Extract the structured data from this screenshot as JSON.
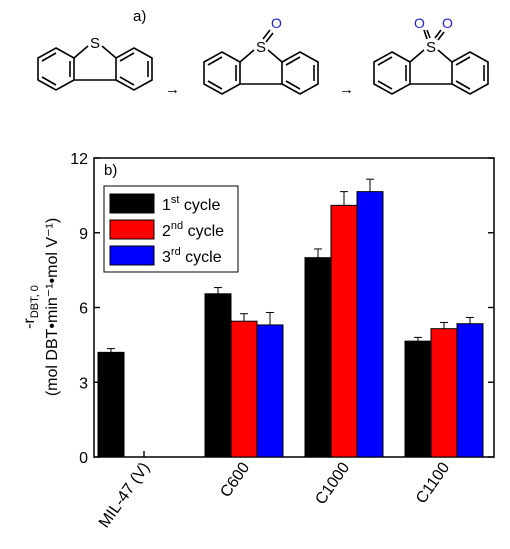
{
  "panel_a": {
    "label": "a)",
    "sulfur_symbol": "S",
    "oxygen_symbol": "O",
    "arrow_symbol": "→",
    "molecules": [
      "DBT",
      "DBT sulfoxide",
      "DBT sulfone"
    ]
  },
  "chart_data": {
    "type": "bar",
    "panel_label": "b)",
    "categories": [
      "MIL-47 (V)",
      "C600",
      "C1000",
      "C1100"
    ],
    "series": [
      {
        "name": "1st cycle",
        "name_base": "1",
        "name_sup": "st",
        "name_rest": " cycle",
        "color": "#000000",
        "values": [
          4.2,
          6.55,
          8.0,
          4.65
        ],
        "errors": [
          0.15,
          0.25,
          0.35,
          0.15
        ]
      },
      {
        "name": "2nd cycle",
        "name_base": "2",
        "name_sup": "nd",
        "name_rest": " cycle",
        "color": "#ff0000",
        "values": [
          null,
          5.45,
          10.1,
          5.15
        ],
        "errors": [
          null,
          0.3,
          0.55,
          0.25
        ]
      },
      {
        "name": "3rd cycle",
        "name_base": "3",
        "name_sup": "rd",
        "name_rest": " cycle",
        "color": "#0000ff",
        "values": [
          null,
          5.3,
          10.65,
          5.35
        ],
        "errors": [
          null,
          0.5,
          0.5,
          0.25
        ]
      }
    ],
    "ylim": [
      0,
      12
    ],
    "yticks": [
      0,
      3,
      6,
      9,
      12
    ],
    "ylabel_line1_main": "-r",
    "ylabel_line1_sub": "DBT, 0",
    "ylabel_line2": "(mol DBT•min⁻¹•mol V⁻¹)",
    "legend_position": "top-left",
    "grid": false
  }
}
